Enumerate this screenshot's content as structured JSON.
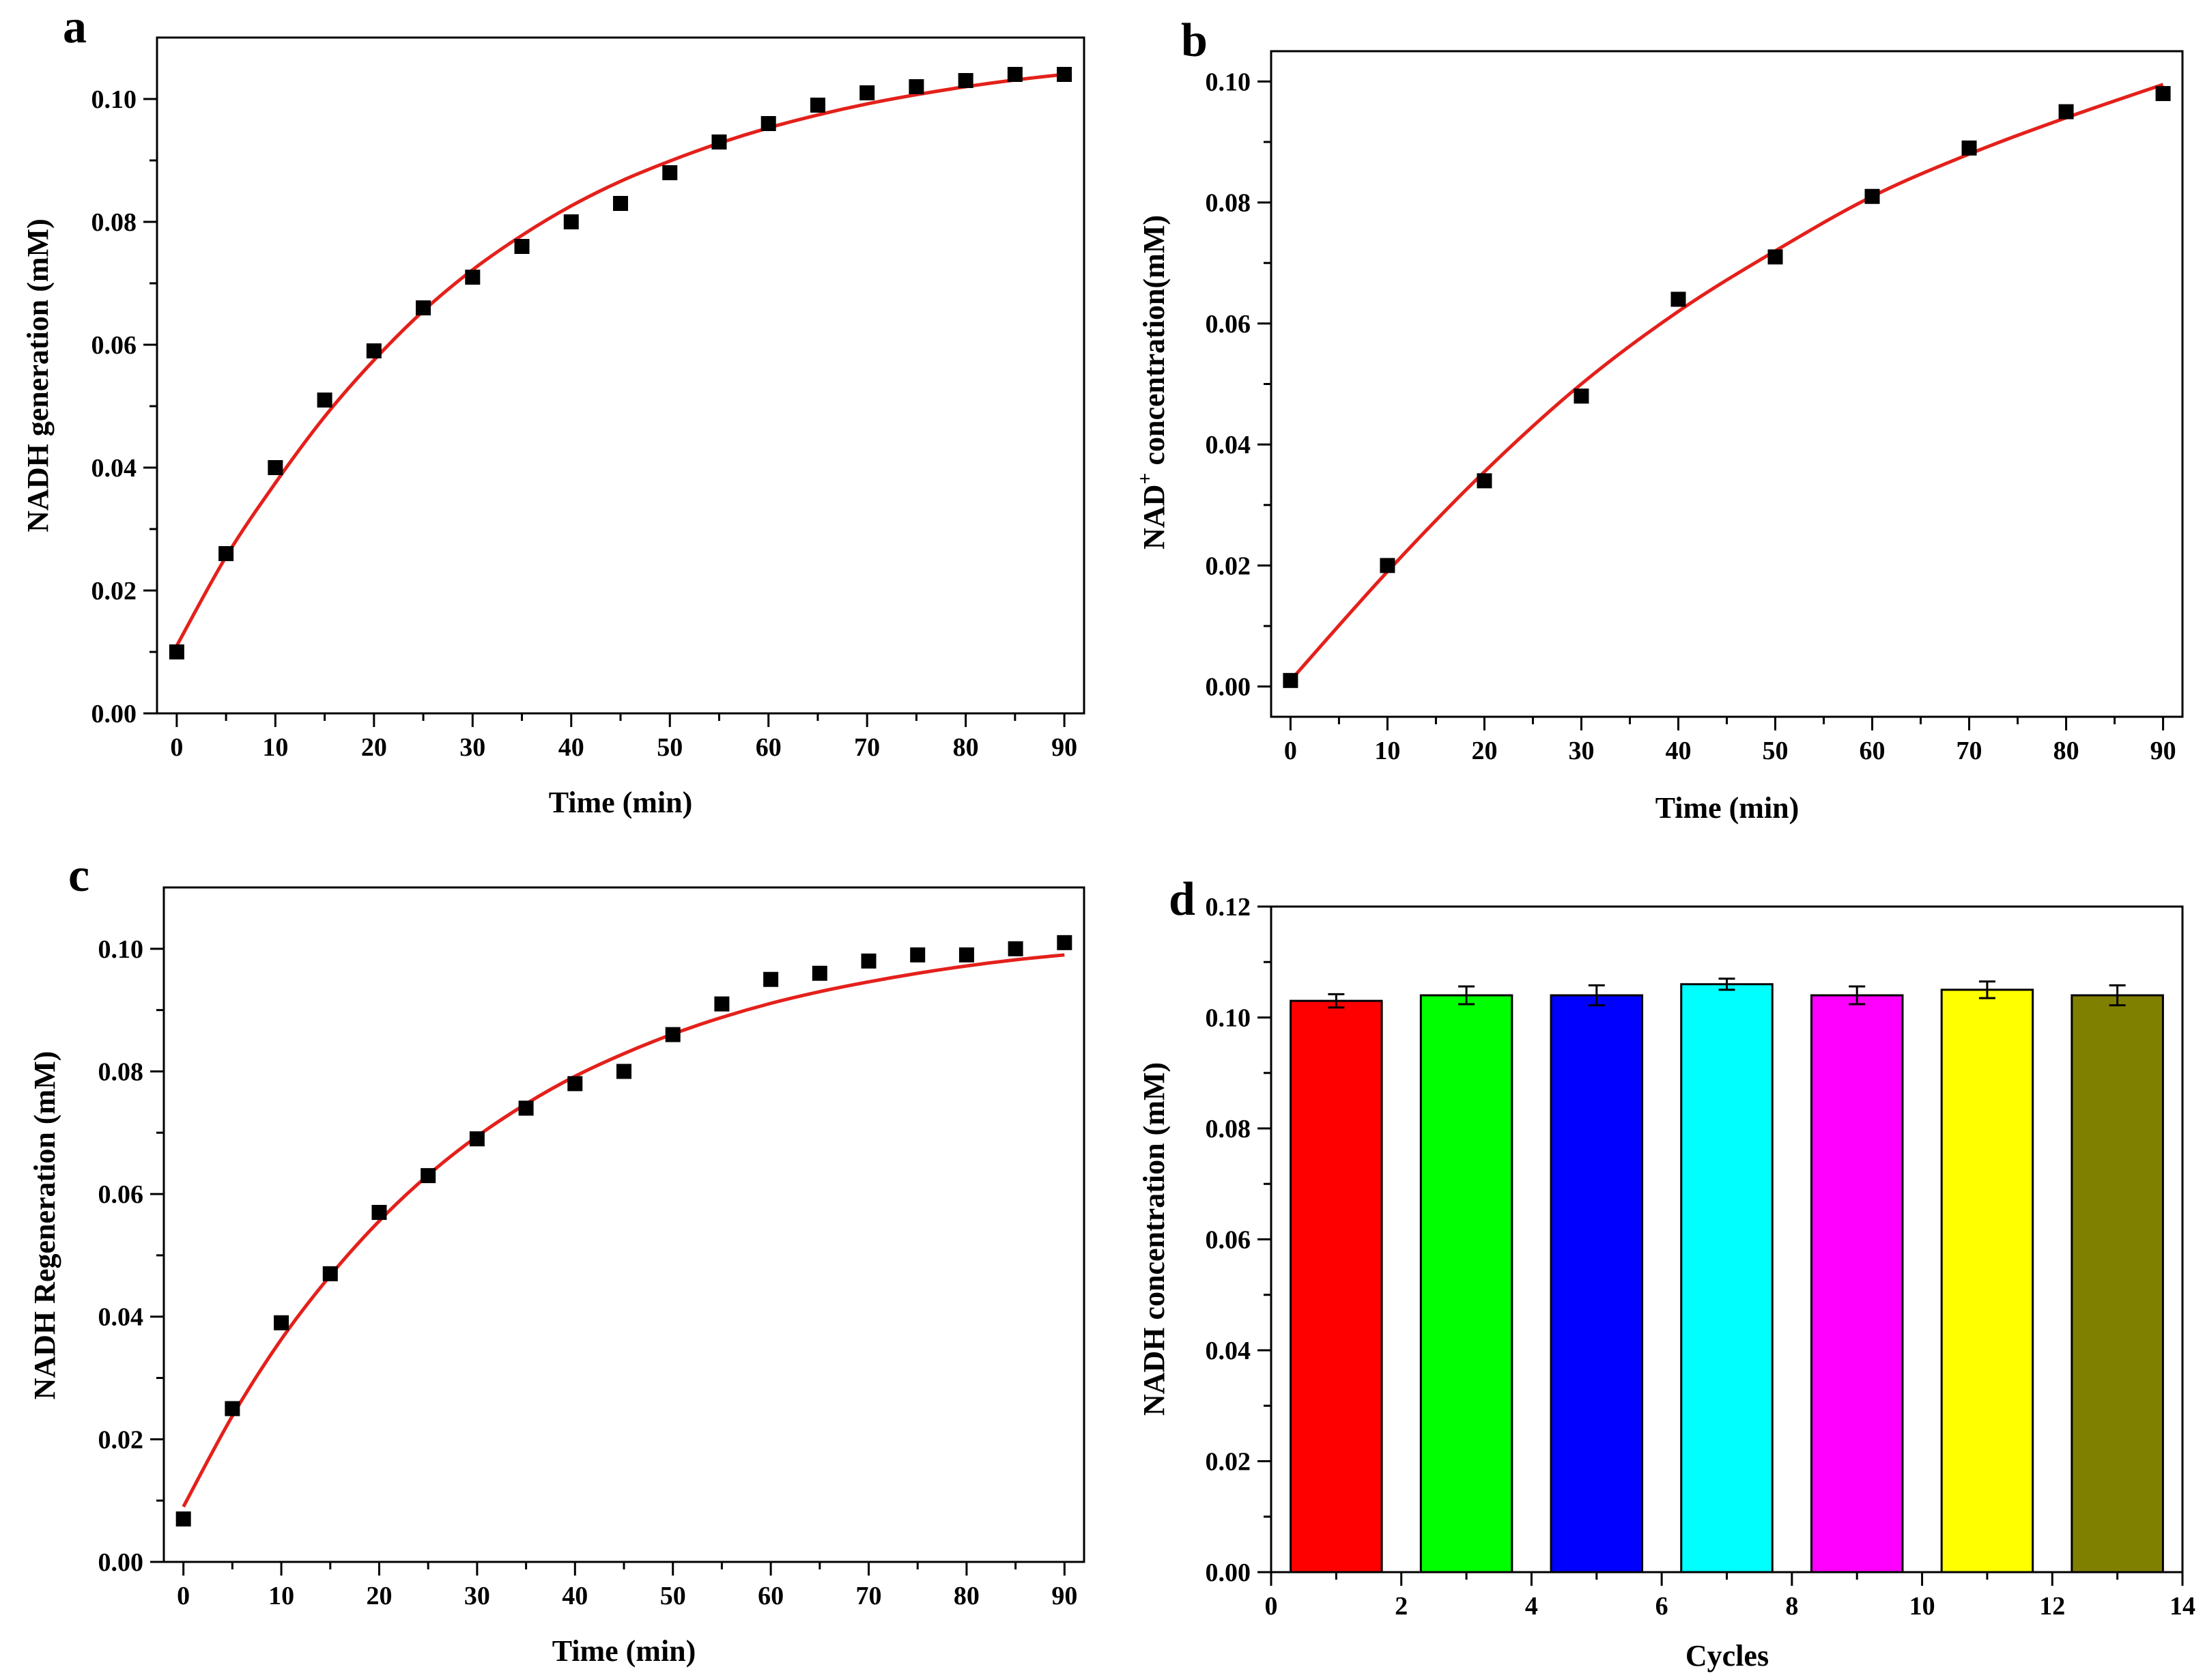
{
  "chart_data": [
    {
      "panel": "a",
      "type": "scatter",
      "xlabel": "Time (min)",
      "ylabel": "NADH generation (mM)",
      "xlim": [
        -2,
        92
      ],
      "ylim": [
        0,
        0.11
      ],
      "xticks": [
        0,
        10,
        20,
        30,
        40,
        50,
        60,
        70,
        80,
        90
      ],
      "yticks": [
        0.0,
        0.02,
        0.04,
        0.06,
        0.08,
        0.1
      ],
      "ytick_labels": [
        "0.00",
        "0.02",
        "0.04",
        "0.06",
        "0.08",
        "0.10"
      ],
      "series": [
        {
          "name": "measured",
          "x": [
            0,
            5,
            10,
            15,
            20,
            25,
            30,
            35,
            40,
            45,
            50,
            55,
            60,
            65,
            70,
            75,
            80,
            85,
            90
          ],
          "y": [
            0.01,
            0.026,
            0.04,
            0.051,
            0.059,
            0.066,
            0.071,
            0.076,
            0.08,
            0.083,
            0.088,
            0.093,
            0.096,
            0.099,
            0.101,
            0.102,
            0.103,
            0.104,
            0.104
          ]
        },
        {
          "name": "fit",
          "x": [
            0,
            5,
            10,
            15,
            20,
            25,
            30,
            35,
            40,
            45,
            50,
            55,
            60,
            65,
            70,
            75,
            80,
            85,
            90
          ],
          "y": [
            0.011,
            0.0255,
            0.0375,
            0.0483,
            0.0575,
            0.0655,
            0.0722,
            0.0778,
            0.0826,
            0.0866,
            0.0899,
            0.0928,
            0.0953,
            0.0974,
            0.0992,
            0.1007,
            0.102,
            0.1031,
            0.104
          ]
        }
      ]
    },
    {
      "panel": "b",
      "type": "scatter",
      "xlabel": "Time (min)",
      "ylabel_main": "NAD",
      "ylabel_sup": "+",
      "ylabel_rest": " concentration(mM)",
      "xlim": [
        -2,
        92
      ],
      "ylim": [
        -0.005,
        0.105
      ],
      "xticks": [
        0,
        10,
        20,
        30,
        40,
        50,
        60,
        70,
        80,
        90
      ],
      "yticks": [
        0.0,
        0.02,
        0.04,
        0.06,
        0.08,
        0.1
      ],
      "ytick_labels": [
        "0.00",
        "0.02",
        "0.04",
        "0.06",
        "0.08",
        "0.10"
      ],
      "series": [
        {
          "name": "measured",
          "x": [
            0,
            10,
            20,
            30,
            40,
            50,
            60,
            70,
            80,
            90
          ],
          "y": [
            0.001,
            0.02,
            0.034,
            0.048,
            0.064,
            0.071,
            0.081,
            0.089,
            0.095,
            0.098
          ]
        },
        {
          "name": "fit",
          "x": [
            0,
            10,
            20,
            30,
            40,
            50,
            60,
            70,
            80,
            90
          ],
          "y": [
            0.001,
            0.019,
            0.0355,
            0.05,
            0.062,
            0.072,
            0.081,
            0.088,
            0.094,
            0.0995
          ]
        }
      ]
    },
    {
      "panel": "c",
      "type": "scatter",
      "xlabel": "Time (min)",
      "ylabel": "NADH Regeneration (mM)",
      "xlim": [
        -2,
        92
      ],
      "ylim": [
        0,
        0.11
      ],
      "xticks": [
        0,
        10,
        20,
        30,
        40,
        50,
        60,
        70,
        80,
        90
      ],
      "yticks": [
        0.0,
        0.02,
        0.04,
        0.06,
        0.08,
        0.1
      ],
      "ytick_labels": [
        "0.00",
        "0.02",
        "0.04",
        "0.06",
        "0.08",
        "0.10"
      ],
      "series": [
        {
          "name": "measured",
          "x": [
            0,
            5,
            10,
            15,
            20,
            25,
            30,
            35,
            40,
            45,
            50,
            55,
            60,
            65,
            70,
            75,
            80,
            85,
            90
          ],
          "y": [
            0.007,
            0.025,
            0.039,
            0.047,
            0.057,
            0.063,
            0.069,
            0.074,
            0.078,
            0.08,
            0.086,
            0.091,
            0.095,
            0.096,
            0.098,
            0.099,
            0.099,
            0.1,
            0.101
          ]
        },
        {
          "name": "fit",
          "x": [
            0,
            5,
            10,
            15,
            20,
            25,
            30,
            35,
            40,
            45,
            50,
            55,
            60,
            65,
            70,
            75,
            80,
            85,
            90
          ],
          "y": [
            0.009,
            0.0238,
            0.0363,
            0.0467,
            0.0556,
            0.0631,
            0.0694,
            0.0747,
            0.0792,
            0.0829,
            0.0861,
            0.0888,
            0.0911,
            0.093,
            0.0946,
            0.096,
            0.0972,
            0.0982,
            0.099
          ]
        }
      ]
    },
    {
      "panel": "d",
      "type": "bar",
      "xlabel": "Cycles",
      "ylabel": "NADH concentration (mM)",
      "xlim": [
        0,
        14
      ],
      "ylim": [
        0,
        0.12
      ],
      "xticks": [
        0,
        2,
        4,
        6,
        8,
        10,
        12,
        14
      ],
      "yticks": [
        0.0,
        0.02,
        0.04,
        0.06,
        0.08,
        0.1,
        0.12
      ],
      "ytick_labels": [
        "0.00",
        "0.02",
        "0.04",
        "0.06",
        "0.08",
        "0.10",
        "0.12"
      ],
      "bar_width": 1.4,
      "x": [
        1,
        3,
        5,
        7,
        9,
        11,
        13
      ],
      "values": [
        0.103,
        0.104,
        0.104,
        0.106,
        0.104,
        0.105,
        0.104
      ],
      "errors": [
        0.0012,
        0.0016,
        0.0018,
        0.001,
        0.0016,
        0.0015,
        0.0018
      ],
      "colors": [
        "#ff0000",
        "#00ff00",
        "#0000ff",
        "#00ffff",
        "#ff00ff",
        "#ffff00",
        "#808000"
      ]
    }
  ]
}
